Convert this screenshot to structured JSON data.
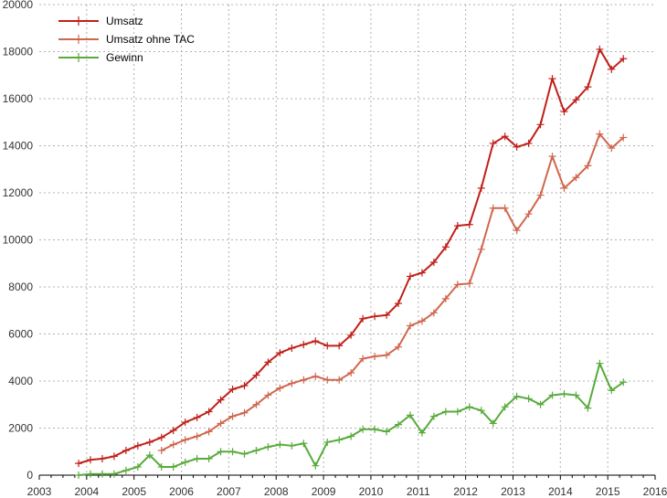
{
  "chart_data": {
    "type": "line",
    "xlim": [
      2003,
      2016
    ],
    "ylim": [
      0,
      20000
    ],
    "x_ticks": [
      "2003",
      "2004",
      "2005",
      "2006",
      "2007",
      "2008",
      "2009",
      "2010",
      "2011",
      "2012",
      "2013",
      "2014",
      "2015",
      "2016"
    ],
    "y_ticks": [
      "0",
      "2000",
      "4000",
      "6000",
      "8000",
      "10000",
      "12000",
      "14000",
      "16000",
      "18000",
      "20000"
    ],
    "grid": true,
    "legend_position": "top-left",
    "series": [
      {
        "name": "Umsatz",
        "color": "#c0201a",
        "x": [
          2003.83,
          2004.08,
          2004.33,
          2004.58,
          2004.83,
          2005.08,
          2005.33,
          2005.58,
          2005.83,
          2006.08,
          2006.33,
          2006.58,
          2006.83,
          2007.08,
          2007.33,
          2007.58,
          2007.83,
          2008.08,
          2008.33,
          2008.58,
          2008.83,
          2009.08,
          2009.33,
          2009.58,
          2009.83,
          2010.08,
          2010.33,
          2010.58,
          2010.83,
          2011.08,
          2011.33,
          2011.58,
          2011.83,
          2012.08,
          2012.33,
          2012.58,
          2012.83,
          2013.08,
          2013.33,
          2013.58,
          2013.83,
          2014.08,
          2014.33,
          2014.58,
          2014.83,
          2015.08,
          2015.33
        ],
        "y": [
          500,
          650,
          700,
          800,
          1050,
          1250,
          1400,
          1600,
          1900,
          2250,
          2450,
          2700,
          3200,
          3650,
          3800,
          4250,
          4800,
          5200,
          5400,
          5550,
          5700,
          5500,
          5500,
          5950,
          6650,
          6750,
          6800,
          7300,
          8450,
          8600,
          9050,
          9700,
          10600,
          10650,
          12200,
          14100,
          14400,
          13950,
          14100,
          14900,
          16850,
          15450,
          15950,
          16500,
          18100,
          17250,
          17700
        ]
      },
      {
        "name": "Umsatz ohne TAC",
        "color": "#d0674e",
        "x": [
          2005.58,
          2005.83,
          2006.08,
          2006.33,
          2006.58,
          2006.83,
          2007.08,
          2007.33,
          2007.58,
          2007.83,
          2008.08,
          2008.33,
          2008.58,
          2008.83,
          2009.08,
          2009.33,
          2009.58,
          2009.83,
          2010.08,
          2010.33,
          2010.58,
          2010.83,
          2011.08,
          2011.33,
          2011.58,
          2011.83,
          2012.08,
          2012.33,
          2012.58,
          2012.83,
          2013.08,
          2013.33,
          2013.58,
          2013.83,
          2014.08,
          2014.33,
          2014.58,
          2014.83,
          2015.08,
          2015.33
        ],
        "y": [
          1050,
          1300,
          1500,
          1650,
          1850,
          2200,
          2500,
          2650,
          3000,
          3400,
          3700,
          3900,
          4050,
          4200,
          4050,
          4050,
          4350,
          4950,
          5050,
          5100,
          5450,
          6350,
          6550,
          6900,
          7500,
          8100,
          8150,
          9600,
          11350,
          11350,
          10400,
          11100,
          11900,
          13550,
          12200,
          12650,
          13150,
          14500,
          13900,
          14350
        ]
      },
      {
        "name": "Gewinn",
        "color": "#58ab3c",
        "x": [
          2003.83,
          2004.08,
          2004.33,
          2004.58,
          2004.83,
          2005.08,
          2005.33,
          2005.58,
          2005.83,
          2006.08,
          2006.33,
          2006.58,
          2006.83,
          2007.08,
          2007.33,
          2007.58,
          2007.83,
          2008.08,
          2008.33,
          2008.58,
          2008.83,
          2009.08,
          2009.33,
          2009.58,
          2009.83,
          2010.08,
          2010.33,
          2010.58,
          2010.83,
          2011.08,
          2011.33,
          2011.58,
          2011.83,
          2012.08,
          2012.33,
          2012.58,
          2012.83,
          2013.08,
          2013.33,
          2013.58,
          2013.83,
          2014.08,
          2014.33,
          2014.58,
          2014.83,
          2015.08,
          2015.33
        ],
        "y": [
          0,
          50,
          50,
          50,
          200,
          350,
          850,
          350,
          350,
          550,
          700,
          700,
          1000,
          1000,
          900,
          1050,
          1200,
          1300,
          1250,
          1350,
          400,
          1400,
          1500,
          1650,
          1950,
          1950,
          1850,
          2150,
          2550,
          1800,
          2500,
          2700,
          2700,
          2900,
          2750,
          2200,
          2900,
          3350,
          3250,
          3000,
          3400,
          3450,
          3400,
          2850,
          4750,
          3600,
          3950
        ]
      }
    ]
  }
}
